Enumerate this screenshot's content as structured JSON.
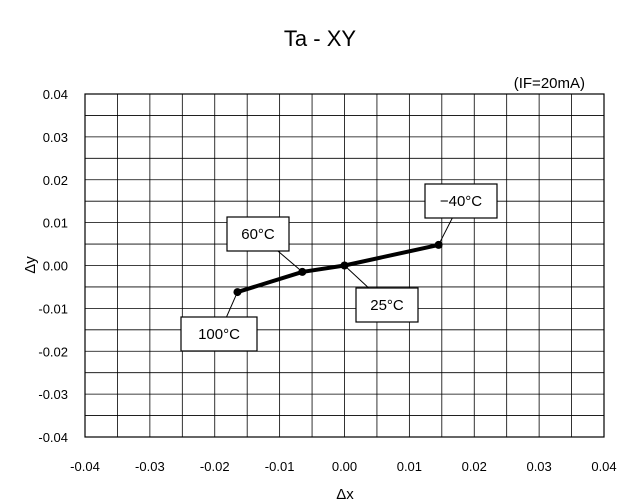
{
  "chart_data": {
    "type": "line",
    "title": "Ta - XY",
    "subtitle": "(IF=20mA)",
    "xlabel": "Δx",
    "ylabel": "Δy",
    "xlim": [
      -0.04,
      0.04
    ],
    "ylim": [
      -0.04,
      0.04
    ],
    "x_ticks": [
      "-0.04",
      "-0.03",
      "-0.02",
      "-0.01",
      "0.00",
      "0.01",
      "0.02",
      "0.03",
      "0.04"
    ],
    "y_ticks": [
      "0.04",
      "0.03",
      "0.02",
      "0.01",
      "0.00",
      "-0.01",
      "-0.02",
      "-0.03",
      "-0.04"
    ],
    "grid": true,
    "series": [
      {
        "points": [
          {
            "x": -0.0165,
            "y": -0.0062,
            "label": "100°C"
          },
          {
            "x": -0.0065,
            "y": -0.0015,
            "label": "60°C"
          },
          {
            "x": 0.0,
            "y": 0.0,
            "label": "25°C"
          },
          {
            "x": 0.0145,
            "y": 0.0048,
            "label": "−40°C"
          }
        ]
      }
    ]
  }
}
